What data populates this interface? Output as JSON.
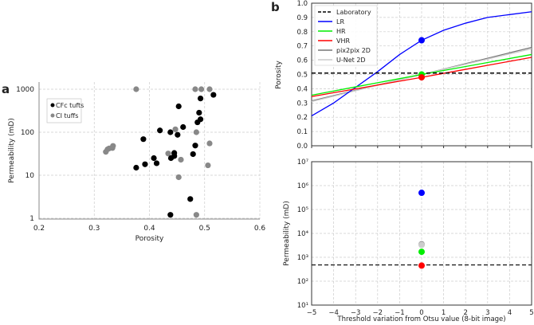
{
  "chart_data": [
    {
      "panel": "a",
      "type": "scatter",
      "xlabel": "Porosity",
      "ylabel": "Permeability (mD)",
      "xlim": [
        0.2,
        0.6
      ],
      "ylim": [
        1,
        1000
      ],
      "yscale": "log",
      "xticks": [
        "0.2",
        "0.3",
        "0.4",
        "0.5",
        "0.6"
      ],
      "yticks": [
        "1",
        "10",
        "100",
        "1000"
      ],
      "legend_placement": "top-left",
      "grid": true,
      "series": [
        {
          "name": "CFc tufts",
          "color": "#000000",
          "points": [
            [
              0.453,
              400
            ],
            [
              0.4925,
              610
            ],
            [
              0.516,
              740
            ],
            [
              0.49,
              285
            ],
            [
              0.4925,
              200
            ],
            [
              0.487,
              170
            ],
            [
              0.461,
              132
            ],
            [
              0.419,
              110
            ],
            [
              0.438,
              100
            ],
            [
              0.451,
              87
            ],
            [
              0.389,
              69
            ],
            [
              0.483,
              49
            ],
            [
              0.445,
              33
            ],
            [
              0.479,
              31
            ],
            [
              0.408,
              25
            ],
            [
              0.445,
              28
            ],
            [
              0.439,
              25
            ],
            [
              0.413,
              19
            ],
            [
              0.392,
              18
            ],
            [
              0.376,
              15
            ],
            [
              0.474,
              2.8
            ],
            [
              0.438,
              1.2
            ]
          ]
        },
        {
          "name": "CI tuffs",
          "color": "#888888",
          "points": [
            [
              0.376,
              1000
            ],
            [
              0.483,
              1000
            ],
            [
              0.494,
              1000
            ],
            [
              0.509,
              1000
            ],
            [
              0.447,
              117
            ],
            [
              0.485,
              100
            ],
            [
              0.509,
              55
            ],
            [
              0.434,
              32
            ],
            [
              0.457,
              23
            ],
            [
              0.506,
              17
            ],
            [
              0.453,
              9
            ],
            [
              0.321,
              35
            ],
            [
              0.324,
              40
            ],
            [
              0.327,
              42
            ],
            [
              0.333,
              43
            ],
            [
              0.334,
              48
            ],
            [
              0.485,
              1.2
            ]
          ]
        }
      ]
    },
    {
      "panel": "b-top",
      "type": "line",
      "ylabel": "Porosity",
      "xlim": [
        -5,
        5
      ],
      "ylim": [
        0,
        1
      ],
      "grid": true,
      "legend_placement": "top-left",
      "x": [
        -5,
        -4,
        -3,
        -2,
        -1,
        0,
        1,
        2,
        3,
        4,
        5
      ],
      "yticks": [
        "0.0",
        "0.1",
        "0.2",
        "0.3",
        "0.4",
        "0.5",
        "0.6",
        "0.7",
        "0.8",
        "0.9",
        "1.0"
      ],
      "series": [
        {
          "name": "Laboratory",
          "color": "#000000",
          "dashed": true,
          "values": [
            0.51,
            0.51,
            0.51,
            0.51,
            0.51,
            0.51,
            0.51,
            0.51,
            0.51,
            0.51,
            0.51
          ]
        },
        {
          "name": "LR",
          "color": "#0000ff",
          "values": [
            0.21,
            0.3,
            0.41,
            0.52,
            0.64,
            0.74,
            0.81,
            0.86,
            0.9,
            0.92,
            0.94
          ],
          "marker_at_0": true
        },
        {
          "name": "HR",
          "color": "#00ee00",
          "values": [
            0.355,
            0.384,
            0.413,
            0.442,
            0.471,
            0.5,
            0.528,
            0.556,
            0.584,
            0.612,
            0.64
          ],
          "marker_at_0": true
        },
        {
          "name": "VHR",
          "color": "#ff0000",
          "values": [
            0.345,
            0.372,
            0.399,
            0.426,
            0.453,
            0.48,
            0.508,
            0.536,
            0.564,
            0.592,
            0.62
          ],
          "marker_at_0": true
        },
        {
          "name": "pix2pix 2D",
          "color": "#777777",
          "values": [
            0.315,
            0.352,
            0.389,
            0.426,
            0.463,
            0.5,
            0.538,
            0.576,
            0.614,
            0.652,
            0.69
          ]
        },
        {
          "name": "U-Net 2D",
          "color": "#cccccc",
          "values": [
            0.31,
            0.348,
            0.386,
            0.424,
            0.462,
            0.5,
            0.536,
            0.572,
            0.608,
            0.644,
            0.68
          ]
        }
      ]
    },
    {
      "panel": "b-bottom",
      "type": "scatter",
      "xlabel": "Threshold variation from Otsu value (8-bit image)",
      "ylabel": "Permeability (mD)",
      "xlim": [
        -5,
        5
      ],
      "ylim": [
        10,
        10000000
      ],
      "yscale": "log",
      "grid": true,
      "xticks": [
        "−5",
        "−4",
        "−3",
        "−2",
        "−1",
        "0",
        "1",
        "2",
        "3",
        "4",
        "5"
      ],
      "yticks": [
        "10¹",
        "10²",
        "10³",
        "10⁴",
        "10⁵",
        "10⁶",
        "10⁷"
      ],
      "laboratory": 480,
      "points": [
        {
          "name": "LR",
          "color": "#0000ff",
          "x": 0,
          "y": 500000
        },
        {
          "name": "pix2pix 2D",
          "color": "#888888",
          "x": 0,
          "y": 3500
        },
        {
          "name": "U-Net 2D",
          "color": "#cccccc",
          "x": 0,
          "y": 3300
        },
        {
          "name": "HR",
          "color": "#00ee00",
          "x": 0,
          "y": 1700
        },
        {
          "name": "VHR",
          "color": "#ff0000",
          "x": 0,
          "y": 450
        }
      ]
    }
  ],
  "labels": {
    "a": "a",
    "b": "b"
  }
}
